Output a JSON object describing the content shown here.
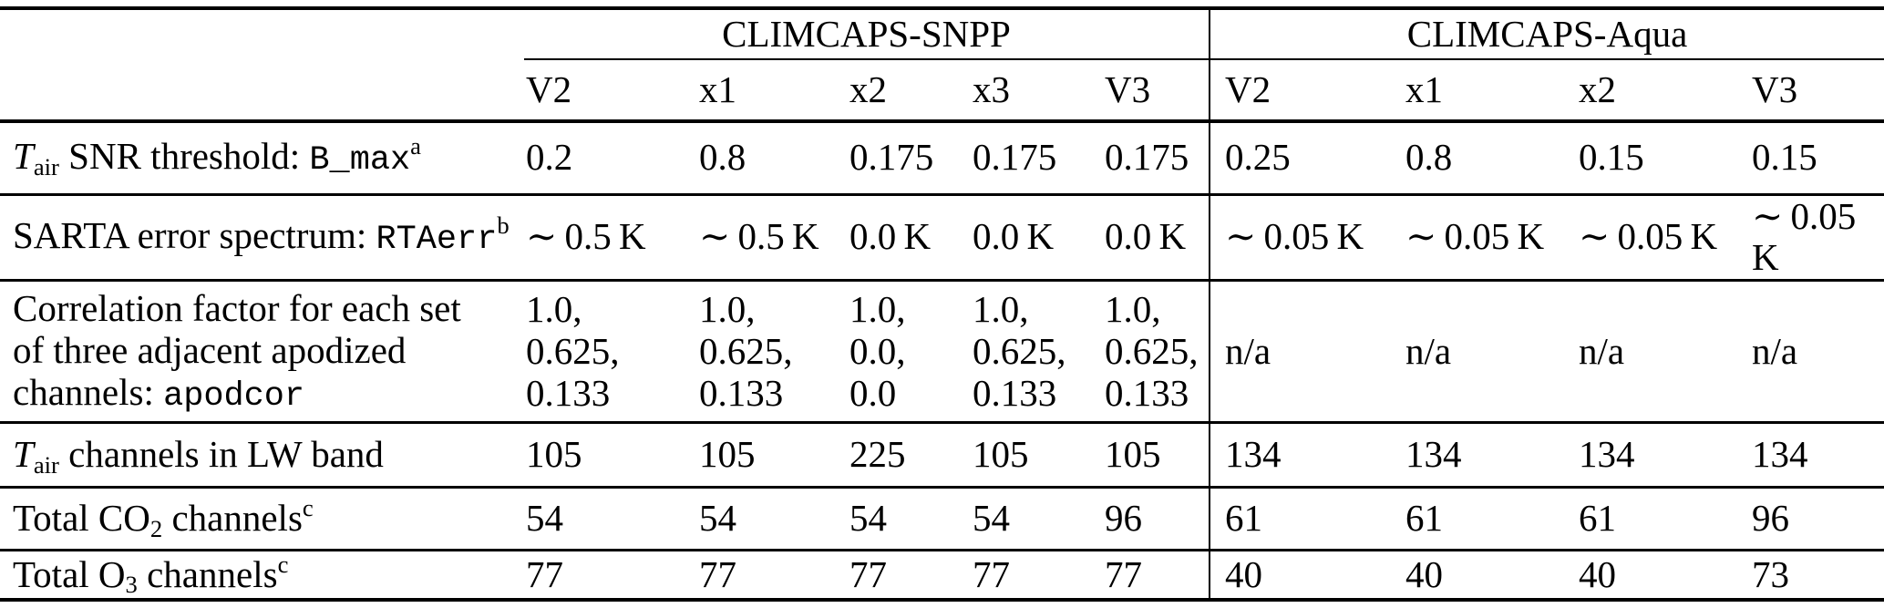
{
  "colors": {
    "text": "#000000",
    "rule": "#000000",
    "background": "#ffffff"
  },
  "table": {
    "header": {
      "corner_label": "",
      "groups": [
        {
          "label": "CLIMCAPS-SNPP",
          "colspan": 5
        },
        {
          "label": "CLIMCAPS-Aqua",
          "colspan": 4
        }
      ],
      "snpp_columns": [
        "V2",
        "x1",
        "x2",
        "x3",
        "V3"
      ],
      "aqua_columns": [
        "V2",
        "x1",
        "x2",
        "V3"
      ]
    },
    "rows": [
      {
        "label_segments": [
          {
            "text": "T",
            "style": "italic"
          },
          {
            "text": "air",
            "style": "sub"
          },
          {
            "text": " SNR threshold: ",
            "style": ""
          },
          {
            "text": "B_max",
            "style": "mono"
          },
          {
            "text": "a",
            "style": "sup"
          }
        ],
        "snpp": [
          "0.2",
          "0.8",
          "0.175",
          "0.175",
          "0.175"
        ],
        "aqua": [
          "0.25",
          "0.8",
          "0.15",
          "0.15"
        ]
      },
      {
        "label_segments": [
          {
            "text": "SARTA error spectrum: ",
            "style": ""
          },
          {
            "text": "RTAerr",
            "style": "mono"
          },
          {
            "text": "b",
            "style": "sup"
          }
        ],
        "snpp": [
          "∼ 0.5 K",
          "∼ 0.5 K",
          "0.0 K",
          "0.0 K",
          "0.0 K"
        ],
        "aqua": [
          "∼ 0.05 K",
          "∼ 0.05 K",
          "∼ 0.05 K",
          "∼ 0.05 K"
        ]
      },
      {
        "label_segments": [
          {
            "text": "Correlation factor for each set\nof three adjacent apodized\nchannels: ",
            "style": ""
          },
          {
            "text": "apodcor",
            "style": "mono"
          }
        ],
        "snpp": [
          "1.0,\n0.625,\n0.133",
          "1.0,\n0.625,\n0.133",
          "1.0,\n0.0,\n0.0",
          "1.0,\n0.625,\n0.133",
          "1.0,\n0.625,\n0.133"
        ],
        "aqua": [
          "n/a",
          "n/a",
          "n/a",
          "n/a"
        ]
      },
      {
        "label_segments": [
          {
            "text": "T",
            "style": "italic"
          },
          {
            "text": "air",
            "style": "sub"
          },
          {
            "text": " channels in LW band",
            "style": ""
          }
        ],
        "snpp": [
          "105",
          "105",
          "225",
          "105",
          "105"
        ],
        "aqua": [
          "134",
          "134",
          "134",
          "134"
        ]
      },
      {
        "label_segments": [
          {
            "text": "Total CO",
            "style": ""
          },
          {
            "text": "2",
            "style": "sub"
          },
          {
            "text": " channels",
            "style": ""
          },
          {
            "text": "c",
            "style": "sup"
          }
        ],
        "snpp": [
          "54",
          "54",
          "54",
          "54",
          "96"
        ],
        "aqua": [
          "61",
          "61",
          "61",
          "96"
        ]
      },
      {
        "label_segments": [
          {
            "text": "Total O",
            "style": ""
          },
          {
            "text": "3",
            "style": "sub"
          },
          {
            "text": " channels",
            "style": ""
          },
          {
            "text": "c",
            "style": "sup"
          }
        ],
        "snpp": [
          "77",
          "77",
          "77",
          "77",
          "77"
        ],
        "aqua": [
          "40",
          "40",
          "40",
          "73"
        ]
      }
    ]
  }
}
